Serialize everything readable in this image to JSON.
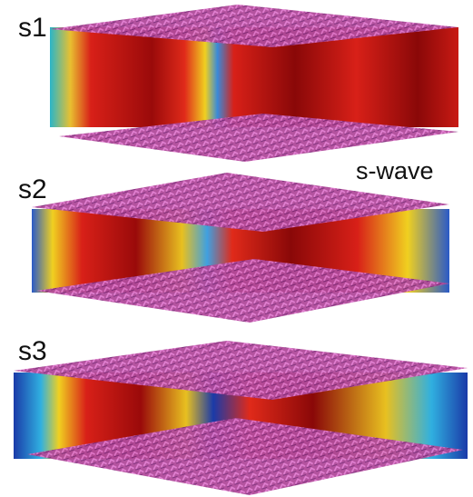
{
  "panels": [
    {
      "label": "s1"
    },
    {
      "label": "s2"
    },
    {
      "label": "s3"
    }
  ],
  "annotation": "s-wave"
}
